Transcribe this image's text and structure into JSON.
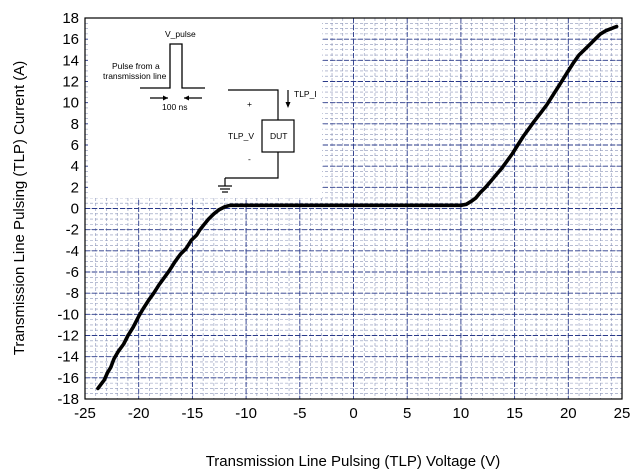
{
  "chart_data": {
    "type": "line",
    "title": "",
    "xlabel": "Transmission Line Pulsing (TLP) Voltage (V)",
    "ylabel": "Transmission Line Pulsing (TLP) Current (A)",
    "xlim": [
      -25,
      25
    ],
    "ylim": [
      -18,
      18
    ],
    "xticks": [
      -25,
      -20,
      -15,
      -10,
      -5,
      0,
      5,
      10,
      15,
      20,
      25
    ],
    "yticks": [
      -18,
      -16,
      -14,
      -12,
      -10,
      -8,
      -6,
      -4,
      -2,
      0,
      2,
      4,
      6,
      8,
      10,
      12,
      14,
      16,
      18
    ],
    "grid": true,
    "series": [
      {
        "color": "#000000",
        "x": [
          -23.8,
          -23.2,
          -22.9,
          -22.6,
          -22.3,
          -21.9,
          -21.4,
          -21.0,
          -20.5,
          -20.0,
          -19.6,
          -19.1,
          -18.6,
          -18.1,
          -17.6,
          -17.1,
          -16.6,
          -16.1,
          -15.6,
          -15.1,
          -14.6,
          -14.3,
          -13.9,
          -13.5,
          -13.0,
          -12.5,
          -12.0,
          -11.5,
          -11.0,
          -10.5,
          -10.0,
          -9.5,
          -9.0,
          -8.0,
          -5.0,
          0.0,
          5.0,
          9.0,
          10.0,
          10.5,
          11.0,
          11.4,
          11.8,
          12.3,
          12.8,
          13.3,
          13.8,
          14.3,
          14.8,
          15.3,
          15.8,
          16.3,
          16.8,
          17.4,
          18.0,
          18.5,
          19.0,
          19.5,
          20.0,
          20.5,
          21.0,
          21.5,
          22.0,
          22.5,
          23.0,
          23.5,
          24.0,
          24.5
        ],
        "y": [
          -17.0,
          -16.2,
          -15.5,
          -15.0,
          -14.2,
          -13.5,
          -12.8,
          -12.0,
          -11.2,
          -10.2,
          -9.5,
          -8.7,
          -8.0,
          -7.2,
          -6.5,
          -5.8,
          -5.0,
          -4.3,
          -3.8,
          -3.0,
          -2.5,
          -2.0,
          -1.5,
          -1.0,
          -0.5,
          -0.1,
          0.15,
          0.3,
          0.3,
          0.3,
          0.3,
          0.3,
          0.3,
          0.3,
          0.3,
          0.3,
          0.3,
          0.3,
          0.3,
          0.4,
          0.7,
          1.0,
          1.5,
          2.0,
          2.6,
          3.2,
          3.8,
          4.5,
          5.2,
          6.0,
          6.8,
          7.5,
          8.2,
          9.0,
          9.8,
          10.6,
          11.4,
          12.2,
          13.0,
          13.8,
          14.5,
          15.0,
          15.5,
          16.0,
          16.5,
          16.8,
          17.0,
          17.2
        ]
      }
    ],
    "inset": {
      "pulse_label": "V_pulse",
      "source_label_line1": "Pulse from a",
      "source_label_line2": "transmission line",
      "width_label": "100 ns",
      "current_label": "TLP_I",
      "voltage_label": "TLP_V",
      "plus_label": "+",
      "minus_label": "-",
      "dut_label": "DUT"
    }
  }
}
